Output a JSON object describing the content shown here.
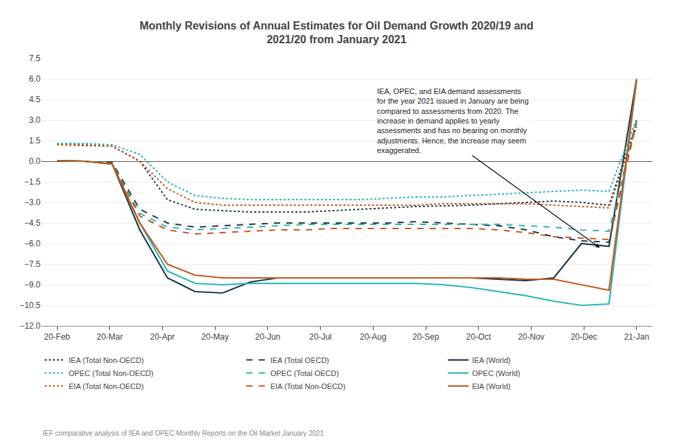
{
  "chart_data": {
    "type": "line",
    "title": "Monthly Revisions of Annual Estimates for Oil Demand Growth 2020/19 and\n2021/20 from January 2021",
    "x": [
      0,
      0.5238095238095238,
      1.0476190476190477,
      1.5714285714285714,
      2.0952380952380953,
      2.619047619047619,
      3.142857142857143,
      3.666666666666667,
      4.190476190476191,
      4.714285714285714,
      5.238095238095238,
      5.761904761904762,
      6.285714285714286,
      6.809523809523809,
      7.333333333333333,
      7.857142857142857,
      8.380952380952381,
      8.904761904761905,
      9.428571428571429,
      9.952380952380953,
      10.476190476190476,
      11
    ],
    "xlim": [
      -0.3,
      11.3
    ],
    "xticks": [
      {
        "value": 0,
        "label": "20-Feb"
      },
      {
        "value": 1,
        "label": "20-Mar"
      },
      {
        "value": 2,
        "label": "20-Apr"
      },
      {
        "value": 3,
        "label": "20-May"
      },
      {
        "value": 4,
        "label": "20-Jun"
      },
      {
        "value": 5,
        "label": "20-Jul"
      },
      {
        "value": 6,
        "label": "20-Aug"
      },
      {
        "value": 7,
        "label": "20-Sep"
      },
      {
        "value": 8,
        "label": "20-Oct"
      },
      {
        "value": 9,
        "label": "20-Nov"
      },
      {
        "value": 10,
        "label": "20-Dec"
      },
      {
        "value": 11,
        "label": "21-Jan"
      }
    ],
    "ylim": [
      -12.0,
      7.5
    ],
    "yticks": [
      {
        "value": -12.0,
        "label": "−12.0"
      },
      {
        "value": -10.5,
        "label": "−10.5"
      },
      {
        "value": -9.0,
        "label": "−9.0"
      },
      {
        "value": -7.5,
        "label": "−7.5"
      },
      {
        "value": -6.0,
        "label": "−6.0"
      },
      {
        "value": -4.5,
        "label": "−4.5"
      },
      {
        "value": -3.0,
        "label": "−3.0"
      },
      {
        "value": -1.5,
        "label": "−1.5"
      },
      {
        "value": 0.0,
        "label": "0.0"
      },
      {
        "value": 1.5,
        "label": "1.5"
      },
      {
        "value": 3.0,
        "label": "3.0"
      },
      {
        "value": 4.5,
        "label": "4.5"
      },
      {
        "value": 6.0,
        "label": "6.0"
      },
      {
        "value": 7.5,
        "label": "7.5"
      }
    ],
    "grid": "y",
    "legend": "bottom",
    "annotations": [
      "IEA, OPEC, and EIA demand assessments\nfor the year 2021 issued in January are being\ncompared to assessments from 2020. The\nincrease in demand applies to yearly\nassessments and has no bearing on monthly\nadjustments. Hence, the increase may seem\nexaggerated."
    ],
    "footer": "IEF comparative analysis of IEA and OPEC Monthly Reports on the Oil Market January 2021",
    "series": [
      {
        "name": "IEA (Total Non-OECD)",
        "color": "#1B3A4B",
        "line_style": "dotted",
        "values": [
          1.2,
          1.15,
          1.1,
          0.0,
          -2.8,
          -3.5,
          -3.6,
          -3.7,
          -3.7,
          -3.7,
          -3.6,
          -3.5,
          -3.4,
          -3.3,
          -3.25,
          -3.2,
          -3.1,
          -3.0,
          -2.9,
          -3.0,
          -3.2,
          2.8
        ]
      },
      {
        "name": "IEA (Total OECD)",
        "color": "#1B3A4B",
        "line_style": "dashed",
        "values": [
          0.05,
          0.0,
          -0.1,
          -3.5,
          -4.5,
          -4.8,
          -4.7,
          -4.6,
          -4.5,
          -4.5,
          -4.5,
          -4.5,
          -4.5,
          -4.4,
          -4.5,
          -4.6,
          -4.7,
          -5.0,
          -5.5,
          -5.8,
          -5.9,
          3.0
        ]
      },
      {
        "name": "IEA (World)",
        "color": "#1B3A4B",
        "line_style": "solid",
        "values": [
          0.05,
          0.0,
          -0.2,
          -5.0,
          -8.5,
          -9.5,
          -9.6,
          -8.8,
          -8.5,
          -8.5,
          -8.5,
          -8.5,
          -8.5,
          -8.5,
          -8.5,
          -8.5,
          -8.6,
          -8.7,
          -8.5,
          -6.0,
          -6.2,
          6.0
        ]
      },
      {
        "name": "OPEC (Total Non-OECD)",
        "color": "#2AB5B5",
        "line_style": "dotted",
        "values": [
          1.3,
          1.3,
          1.2,
          0.5,
          -1.5,
          -2.5,
          -2.7,
          -2.8,
          -2.8,
          -2.8,
          -2.8,
          -2.8,
          -2.7,
          -2.6,
          -2.6,
          -2.5,
          -2.4,
          -2.3,
          -2.2,
          -2.1,
          -2.2,
          3.1
        ]
      },
      {
        "name": "OPEC (Total OECD)",
        "color": "#2AB5B5",
        "line_style": "dashed",
        "values": [
          0.05,
          0.0,
          -0.2,
          -3.8,
          -4.8,
          -5.0,
          -4.9,
          -4.8,
          -4.7,
          -4.6,
          -4.6,
          -4.6,
          -4.6,
          -4.6,
          -4.6,
          -4.6,
          -4.6,
          -4.7,
          -4.8,
          -5.0,
          -5.1,
          3.0
        ]
      },
      {
        "name": "OPEC (World)",
        "color": "#2AB5B5",
        "line_style": "solid",
        "values": [
          0.05,
          0.0,
          -0.2,
          -4.5,
          -8.0,
          -8.9,
          -9.0,
          -8.9,
          -8.9,
          -8.9,
          -8.9,
          -8.9,
          -8.9,
          -8.9,
          -9.0,
          -9.2,
          -9.5,
          -9.8,
          -10.2,
          -10.5,
          -10.4,
          6.0
        ]
      },
      {
        "name": "EIA (Total Non-OECD)",
        "color": "#C4581A",
        "line_style": "dotted",
        "values": [
          1.2,
          1.2,
          1.1,
          0.0,
          -2.0,
          -3.0,
          -3.2,
          -3.2,
          -3.2,
          -3.2,
          -3.2,
          -3.2,
          -3.2,
          -3.2,
          -3.1,
          -3.1,
          -3.1,
          -3.1,
          -3.2,
          -3.3,
          -3.4,
          2.5
        ]
      },
      {
        "name": "EIA (Total Non-OECD)",
        "color": "#C4581A",
        "line_style": "dashed",
        "values": [
          0.05,
          0.0,
          -0.2,
          -4.0,
          -5.0,
          -5.3,
          -5.2,
          -5.1,
          -5.0,
          -5.0,
          -4.9,
          -4.9,
          -4.9,
          -4.9,
          -4.9,
          -4.9,
          -5.0,
          -5.2,
          -5.5,
          -5.6,
          -5.7,
          2.8
        ]
      },
      {
        "name": "EIA (World)",
        "color": "#C4581A",
        "line_style": "solid",
        "values": [
          0.05,
          0.0,
          -0.2,
          -4.5,
          -7.5,
          -8.3,
          -8.5,
          -8.5,
          -8.5,
          -8.5,
          -8.5,
          -8.5,
          -8.5,
          -8.5,
          -8.5,
          -8.5,
          -8.5,
          -8.6,
          -8.6,
          -9.0,
          -9.4,
          5.9
        ]
      }
    ]
  }
}
